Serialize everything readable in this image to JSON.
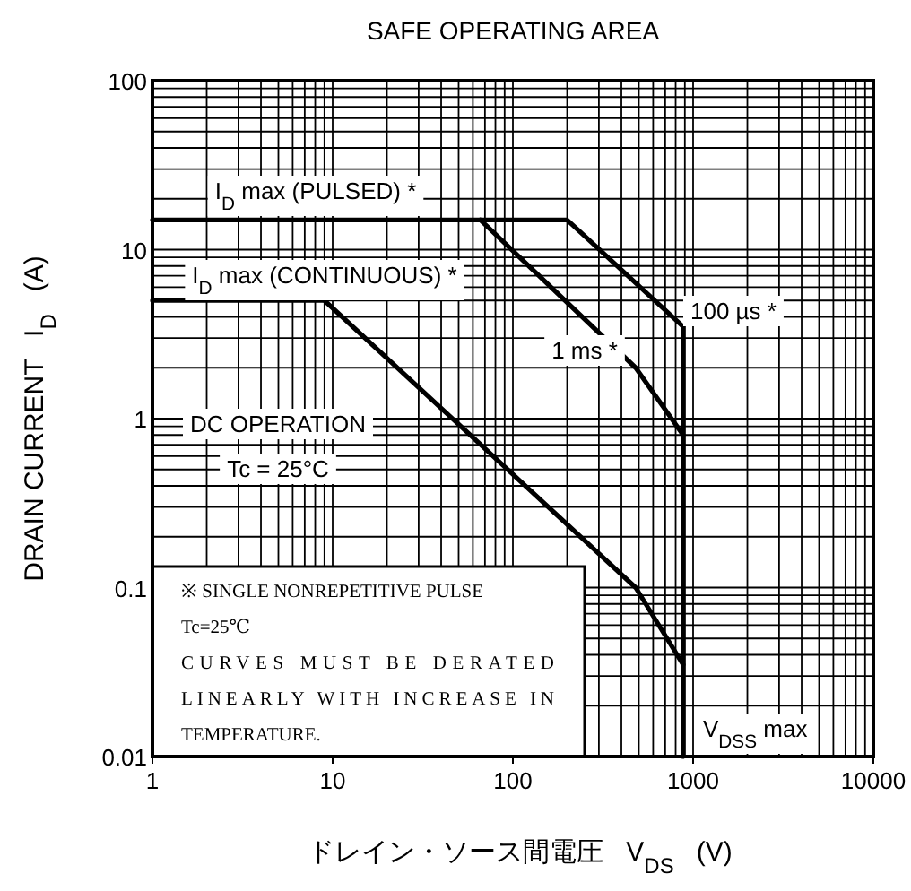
{
  "chart_data": {
    "type": "line",
    "title": "SAFE OPERATING AREA",
    "xlabel": "ドレイン・ソース間電圧   V$_{DS}$   (V)",
    "ylabel": "DRAIN CURRENT   I$_{D}$   (A)",
    "log": "xy",
    "grid": true,
    "xlim": [
      1,
      10000
    ],
    "xticks": [
      1,
      10,
      100,
      1000,
      10000
    ],
    "ylim": [
      0.01,
      100
    ],
    "yticks": [
      0.01,
      0.1,
      1,
      10,
      100
    ],
    "series": [
      {
        "name": "100 µs *",
        "color": "#000000",
        "x": [
          1,
          200,
          880,
          880
        ],
        "values": [
          15,
          15,
          3.5,
          0.01
        ]
      },
      {
        "name": "1 ms *",
        "color": "#000000",
        "x": [
          66,
          480,
          880
        ],
        "values": [
          15,
          2,
          0.8
        ]
      },
      {
        "name": "DC OPERATION",
        "color": "#000000",
        "x": [
          1,
          9,
          480,
          880
        ],
        "values": [
          5,
          5,
          0.1,
          0.035
        ]
      }
    ],
    "annotations": [
      "I$_{D}$ max (PULSED) *",
      "I$_{D}$ max (CONTINUOUS) *",
      "Tc = 25°C",
      "※ SINGLE NONREPETITIVE PULSE",
      "Tc=25℃",
      "CURVES MUST BE DERATED",
      "LINEARLY WITH INCREASE IN",
      "TEMPERATURE.",
      "V$_{DSS}$ max"
    ]
  }
}
